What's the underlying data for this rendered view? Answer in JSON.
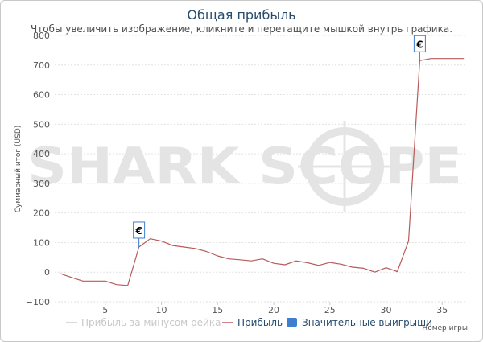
{
  "chart_data": {
    "type": "line",
    "title": "Общая прибыль",
    "subtitle": "Чтобы увеличить изображение, кликните и перетащите мышкой внутрь графика.",
    "xlabel": "Номер игры",
    "ylabel": "Суммарный итог (USD)",
    "xlim": [
      0.5,
      37.2
    ],
    "ylim": [
      -100,
      800
    ],
    "xticks": [
      5,
      10,
      15,
      20,
      25,
      30,
      35
    ],
    "yticks": [
      -100,
      0,
      100,
      200,
      300,
      400,
      500,
      600,
      700,
      800
    ],
    "grid": true,
    "series": [
      {
        "name": "Прибыль",
        "color": "#b85a5a",
        "x": [
          1,
          2,
          3,
          4,
          5,
          6,
          7,
          8,
          9,
          10,
          11,
          12,
          13,
          14,
          15,
          16,
          17,
          18,
          19,
          20,
          21,
          22,
          23,
          24,
          25,
          26,
          27,
          28,
          29,
          30,
          31,
          32,
          33,
          34,
          35,
          36,
          37
        ],
        "values": [
          -5,
          -18,
          -30,
          -30,
          -30,
          -42,
          -45,
          85,
          113,
          105,
          90,
          85,
          80,
          70,
          55,
          45,
          42,
          38,
          45,
          30,
          25,
          38,
          32,
          23,
          33,
          27,
          17,
          13,
          0,
          15,
          2,
          105,
          715,
          722,
          722,
          722,
          722
        ]
      },
      {
        "name": "Прибыль за минусом рейка",
        "color": "#cccccc",
        "x": [],
        "values": []
      }
    ],
    "markers": [
      {
        "series": "Значительные выигрыши",
        "x": 8,
        "y": 85,
        "label": "€"
      },
      {
        "series": "Значительные выигрыши",
        "x": 33,
        "y": 715,
        "label": "€"
      }
    ],
    "legend": {
      "placement": "bottom",
      "items": [
        {
          "label": "Прибыль за минусом рейка",
          "color": "#cccccc",
          "type": "line"
        },
        {
          "label": "Прибыль",
          "color": "#b85a5a",
          "type": "line"
        },
        {
          "label": "Значительные выигрыши",
          "color": "#3f7dcf",
          "type": "box"
        }
      ]
    },
    "watermark": "SHARK SCOPE"
  }
}
